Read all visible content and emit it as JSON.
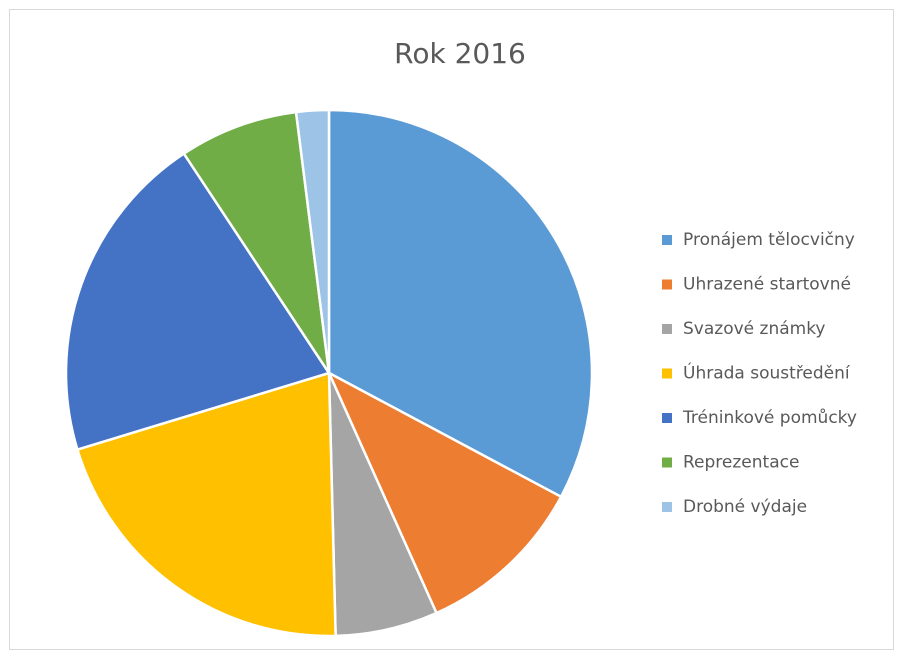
{
  "chart_data": {
    "type": "pie",
    "title": "Rok 2016",
    "categories": [
      "Pronájem tělocvičny",
      "Uhrazené startovné",
      "Svazové známky",
      "Úhrada soustředění",
      "Tréninkové pomůcky",
      "Reprezentace",
      "Drobné výdaje"
    ],
    "values": [
      32.8,
      10.5,
      6.3,
      20.7,
      20.4,
      7.3,
      2.0
    ],
    "colors": [
      "#5b9bd5",
      "#ed7d31",
      "#a5a5a5",
      "#ffc000",
      "#4472c4",
      "#70ad47",
      "#9dc3e6"
    ],
    "legend": "right"
  }
}
